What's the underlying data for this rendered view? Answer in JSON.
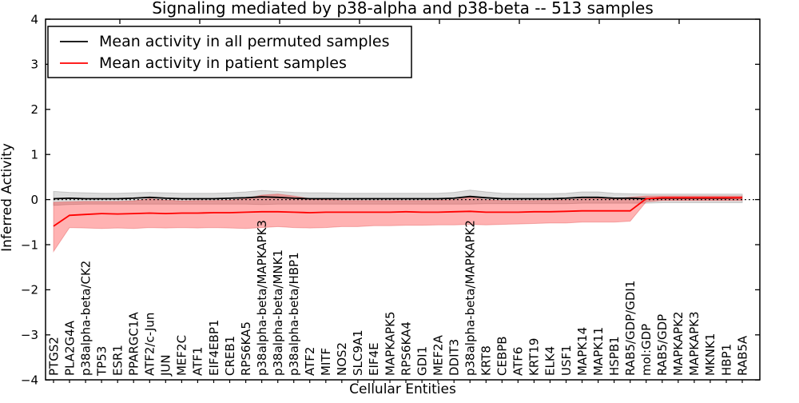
{
  "chart_data": {
    "type": "line",
    "title": "Signaling mediated by p38-alpha and p38-beta -- 513 samples",
    "xlabel": "Cellular Entities",
    "ylabel": "Inferred Activity",
    "ylim": [
      -4,
      4
    ],
    "grid": false,
    "legend_position": "upper left",
    "zero_line": {
      "style": "dotted",
      "color": "#000000",
      "y": 0
    },
    "ytick_values": [
      4,
      3,
      2,
      1,
      0,
      -1,
      -2,
      -3,
      -4
    ],
    "ytick_labels": [
      "4",
      "3",
      "2",
      "1",
      "0",
      "−1",
      "−2",
      "−3",
      "−4"
    ],
    "categories": [
      "PTGS2",
      "PLA2G4A",
      "p38alpha-beta/CK2",
      "TP53",
      "ESR1",
      "PPARGC1A",
      "ATF2/c-Jun",
      "JUN",
      "MEF2C",
      "ATF1",
      "EIF4EBP1",
      "CREB1",
      "RPS6KA5",
      "p38alpha-beta/MAPKAPK3",
      "p38alpha-beta/MNK1",
      "p38alpha-beta/HBP1",
      "ATF2",
      "MITF",
      "NOS2",
      "SLC9A1",
      "EIF4E",
      "MAPKAPK5",
      "RPS6KA4",
      "GDI1",
      "MEF2A",
      "DDIT3",
      "p38alpha-beta/MAPKAPK2",
      "KRT8",
      "CEBPB",
      "ATF6",
      "KRT19",
      "ELK4",
      "USF1",
      "MAPK14",
      "MAPK11",
      "HSPB1",
      "RAB5/GDP/GDI1",
      "mol:GDP",
      "RAB5/GDP",
      "MAPKAPK2",
      "MAPKAPK3",
      "MKNK1",
      "HBP1",
      "RAB5A"
    ],
    "series": [
      {
        "name": "Mean activity in all permuted samples",
        "color": "#000000",
        "band_fill": "rgba(128,128,128,0.28)",
        "band_edge": "rgba(80,80,80,0.25)",
        "values": [
          0.02,
          0.03,
          0.02,
          0.02,
          0.02,
          0.03,
          0.05,
          0.03,
          0.02,
          0.02,
          0.02,
          0.03,
          0.04,
          0.06,
          0.05,
          0.03,
          0.02,
          0.02,
          0.02,
          0.02,
          0.02,
          0.02,
          0.02,
          0.02,
          0.02,
          0.03,
          0.07,
          0.04,
          0.02,
          0.02,
          0.02,
          0.02,
          0.03,
          0.05,
          0.05,
          0.03,
          0.03,
          0.02,
          0.03,
          0.03,
          0.03,
          0.03,
          0.03,
          0.04
        ],
        "band_hi": [
          0.18,
          0.16,
          0.15,
          0.14,
          0.14,
          0.15,
          0.16,
          0.15,
          0.14,
          0.14,
          0.14,
          0.15,
          0.17,
          0.2,
          0.18,
          0.16,
          0.15,
          0.15,
          0.14,
          0.14,
          0.14,
          0.14,
          0.14,
          0.14,
          0.14,
          0.16,
          0.21,
          0.17,
          0.14,
          0.13,
          0.13,
          0.13,
          0.14,
          0.17,
          0.17,
          0.14,
          0.13,
          0.12,
          0.12,
          0.12,
          0.12,
          0.12,
          0.12,
          0.12
        ],
        "band_lo": [
          -0.13,
          -0.11,
          -0.1,
          -0.1,
          -0.1,
          -0.1,
          -0.1,
          -0.1,
          -0.1,
          -0.1,
          -0.1,
          -0.1,
          -0.1,
          -0.11,
          -0.1,
          -0.1,
          -0.1,
          -0.1,
          -0.1,
          -0.1,
          -0.1,
          -0.1,
          -0.1,
          -0.1,
          -0.1,
          -0.1,
          -0.1,
          -0.09,
          -0.09,
          -0.09,
          -0.09,
          -0.09,
          -0.09,
          -0.08,
          -0.08,
          -0.08,
          -0.08,
          -0.08,
          -0.07,
          -0.07,
          -0.07,
          -0.07,
          -0.07,
          -0.07
        ]
      },
      {
        "name": "Mean activity in patient samples",
        "color": "#ff0000",
        "band_fill": "rgba(255,0,0,0.30)",
        "band_edge": "rgba(220,60,60,0.35)",
        "values": [
          -0.59,
          -0.35,
          -0.33,
          -0.31,
          -0.32,
          -0.31,
          -0.3,
          -0.31,
          -0.3,
          -0.3,
          -0.29,
          -0.29,
          -0.28,
          -0.27,
          -0.27,
          -0.28,
          -0.29,
          -0.28,
          -0.28,
          -0.28,
          -0.28,
          -0.28,
          -0.27,
          -0.28,
          -0.28,
          -0.27,
          -0.26,
          -0.28,
          -0.28,
          -0.28,
          -0.27,
          -0.27,
          -0.26,
          -0.25,
          -0.25,
          -0.25,
          -0.25,
          0.02,
          0.04,
          0.04,
          0.04,
          0.04,
          0.04,
          0.04
        ],
        "band_hi": [
          -0.06,
          -0.05,
          -0.04,
          -0.04,
          -0.04,
          -0.03,
          0.02,
          -0.01,
          -0.03,
          -0.02,
          -0.02,
          -0.01,
          0.02,
          0.1,
          0.12,
          0.08,
          0.02,
          0.0,
          -0.02,
          -0.02,
          -0.02,
          -0.02,
          -0.02,
          -0.02,
          -0.01,
          0.0,
          0.05,
          0.0,
          -0.02,
          -0.02,
          -0.02,
          -0.01,
          0.0,
          0.02,
          0.03,
          0.02,
          0.05,
          0.08,
          0.08,
          0.08,
          0.08,
          0.08,
          0.08,
          0.08
        ],
        "band_lo": [
          -1.15,
          -0.62,
          -0.63,
          -0.64,
          -0.63,
          -0.64,
          -0.62,
          -0.63,
          -0.62,
          -0.63,
          -0.62,
          -0.63,
          -0.64,
          -0.62,
          -0.6,
          -0.62,
          -0.63,
          -0.62,
          -0.6,
          -0.6,
          -0.58,
          -0.58,
          -0.57,
          -0.57,
          -0.56,
          -0.56,
          -0.55,
          -0.56,
          -0.55,
          -0.54,
          -0.53,
          -0.52,
          -0.52,
          -0.5,
          -0.5,
          -0.5,
          -0.48,
          -0.05,
          -0.02,
          -0.02,
          -0.02,
          -0.02,
          -0.02,
          -0.02
        ]
      }
    ]
  }
}
